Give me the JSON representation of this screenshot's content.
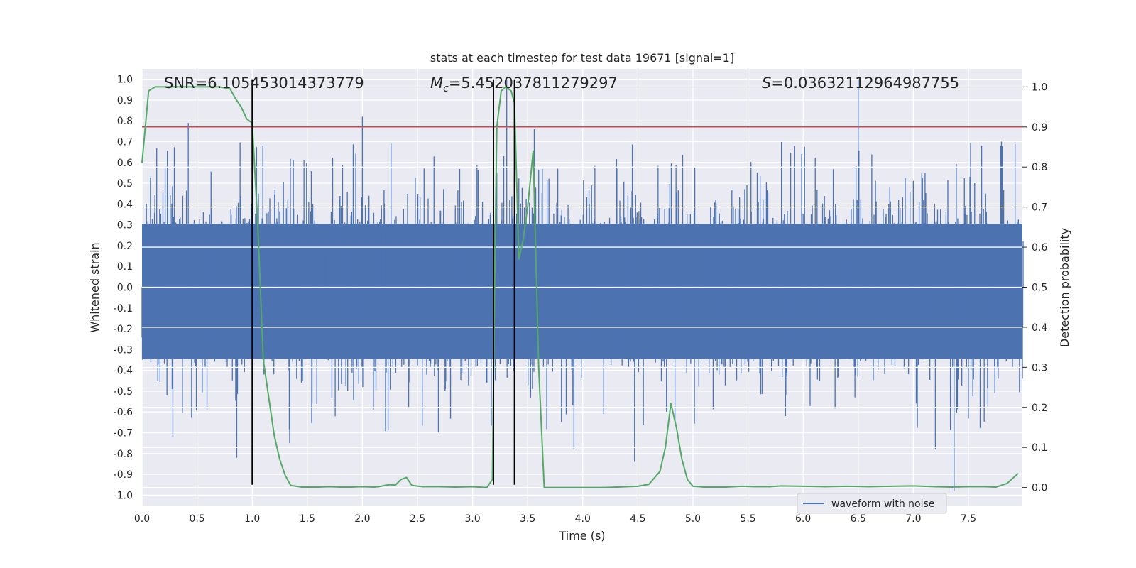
{
  "chart_data": {
    "type": "line",
    "title": "stats at each timestep for test data 19671 [signal=1]",
    "xlabel": "Time (s)",
    "ylabel_left": "Whitened strain",
    "ylabel_right": "Detection probability",
    "xlim": [
      0.0,
      7.99
    ],
    "ylim_left": [
      -1.05,
      1.05
    ],
    "ylim_right": [
      -0.045,
      1.045
    ],
    "grid": true,
    "x_ticks": [
      0.0,
      0.5,
      1.0,
      1.5,
      2.0,
      2.5,
      3.0,
      3.5,
      4.0,
      4.5,
      5.0,
      5.5,
      6.0,
      6.5,
      7.0,
      7.5
    ],
    "x_tick_labels": [
      "0.0",
      "0.5",
      "1.0",
      "1.5",
      "2.0",
      "2.5",
      "3.0",
      "3.5",
      "4.0",
      "4.5",
      "5.0",
      "5.5",
      "6.0",
      "6.5",
      "7.0",
      "7.5"
    ],
    "y_left_ticks": [
      1.0,
      0.9,
      0.8,
      0.7,
      0.6,
      0.5,
      0.4,
      0.3,
      0.2,
      0.1,
      0.0,
      -0.1,
      -0.2,
      -0.3,
      -0.4,
      -0.5,
      -0.6,
      -0.7,
      -0.8,
      -0.9,
      -1.0
    ],
    "y_left_tick_labels": [
      "1.0",
      "0.9",
      "0.8",
      "0.7",
      "0.6",
      "0.5",
      "0.4",
      "0.3",
      "0.2",
      "0.1",
      "0.0",
      "-0.1",
      "-0.2",
      "-0.3",
      "-0.4",
      "-0.5",
      "-0.6",
      "-0.7",
      "-0.8",
      "-0.9",
      "-1.0"
    ],
    "y_right_ticks": [
      1.0,
      0.9,
      0.8,
      0.7,
      0.6,
      0.5,
      0.4,
      0.3,
      0.2,
      0.1,
      0.0
    ],
    "y_right_tick_labels": [
      "1.0",
      "0.9",
      "0.8",
      "0.7",
      "0.6",
      "0.5",
      "0.4",
      "0.3",
      "0.2",
      "0.1",
      "0.0"
    ],
    "stats": {
      "snr": "SNR=6.105453014373779",
      "mc_symbol": "M",
      "mc_subscript": "c",
      "mc_value": "=5.452037811279297",
      "s_symbol": "S",
      "s_value": "=0.03632112964987755"
    },
    "threshold_right": 0.9,
    "vertical_lines_x": [
      1.0,
      3.19,
      3.38
    ],
    "waveform": {
      "name": "waveform with noise",
      "color": "#4c72b0",
      "duration": 8.0,
      "samples": 2400,
      "peak_positive": [
        {
          "t": 0.42,
          "v": 0.79
        },
        {
          "t": 2.0,
          "v": 0.82
        },
        {
          "t": 3.31,
          "v": 1.0
        },
        {
          "t": 6.5,
          "v": 1.0
        },
        {
          "t": 1.04,
          "v": 0.74
        },
        {
          "t": 3.56,
          "v": 0.76
        },
        {
          "t": 7.8,
          "v": 0.7
        }
      ],
      "peak_negative": [
        {
          "t": 0.86,
          "v": -0.82
        },
        {
          "t": 4.47,
          "v": -0.84
        },
        {
          "t": 7.37,
          "v": -0.98
        },
        {
          "t": 7.2,
          "v": -0.78
        },
        {
          "t": 3.92,
          "v": -0.78
        },
        {
          "t": 1.34,
          "v": -0.75
        },
        {
          "t": 0.28,
          "v": -0.72
        }
      ]
    },
    "probability": {
      "name": "detection probability",
      "color": "#55a868",
      "x": [
        0.0,
        0.06,
        0.12,
        0.2,
        0.3,
        0.45,
        0.6,
        0.7,
        0.8,
        0.85,
        0.9,
        0.95,
        1.0,
        1.05,
        1.1,
        1.2,
        1.25,
        1.3,
        1.35,
        1.45,
        1.6,
        1.7,
        1.8,
        1.9,
        2.0,
        2.1,
        2.15,
        2.2,
        2.25,
        2.3,
        2.35,
        2.4,
        2.45,
        2.55,
        2.7,
        2.85,
        3.0,
        3.13,
        3.18,
        3.2,
        3.22,
        3.26,
        3.3,
        3.35,
        3.38,
        3.42,
        3.46,
        3.5,
        3.55,
        3.6,
        3.65,
        3.7,
        3.8,
        4.0,
        4.2,
        4.4,
        4.5,
        4.6,
        4.7,
        4.75,
        4.8,
        4.85,
        4.9,
        4.95,
        5.0,
        5.1,
        5.3,
        5.45,
        5.55,
        5.7,
        5.8,
        6.0,
        6.2,
        6.4,
        6.6,
        6.8,
        7.0,
        7.2,
        7.35,
        7.5,
        7.65,
        7.75,
        7.85,
        7.95
      ],
      "y": [
        0.81,
        0.99,
        1.0,
        1.0,
        1.0,
        1.0,
        1.0,
        1.0,
        0.995,
        0.97,
        0.95,
        0.92,
        0.91,
        0.66,
        0.32,
        0.13,
        0.07,
        0.03,
        0.005,
        0.001,
        0.001,
        0.002,
        0.001,
        0.001,
        0.002,
        0.001,
        0.002,
        0.005,
        0.007,
        0.006,
        0.02,
        0.025,
        0.005,
        0.002,
        0.002,
        0.001,
        0.002,
        0.0,
        0.02,
        0.5,
        0.9,
        0.99,
        1.0,
        0.99,
        0.96,
        0.57,
        0.62,
        0.7,
        0.84,
        0.3,
        0.0,
        0.0,
        0.0,
        0.0,
        0.0,
        0.002,
        0.003,
        0.008,
        0.04,
        0.1,
        0.21,
        0.15,
        0.07,
        0.02,
        0.003,
        0.001,
        0.001,
        0.003,
        0.002,
        0.002,
        0.004,
        0.003,
        0.002,
        0.003,
        0.002,
        0.003,
        0.004,
        0.002,
        0.001,
        0.002,
        0.002,
        0.001,
        0.01,
        0.035
      ]
    },
    "legend": {
      "entries": [
        "waveform with noise"
      ],
      "placement": "lower-right"
    }
  }
}
